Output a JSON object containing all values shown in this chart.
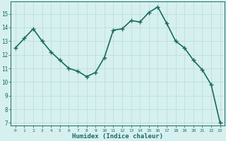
{
  "x": [
    0,
    1,
    2,
    3,
    4,
    5,
    6,
    7,
    8,
    9,
    10,
    11,
    12,
    13,
    14,
    15,
    16,
    17,
    18,
    19,
    20,
    21,
    22,
    23
  ],
  "y": [
    12.5,
    13.2,
    13.9,
    13.0,
    12.2,
    11.6,
    11.0,
    10.8,
    10.4,
    10.7,
    11.8,
    13.8,
    13.9,
    14.5,
    14.4,
    15.1,
    15.5,
    14.3,
    13.0,
    12.5,
    11.6,
    10.9,
    9.8,
    7.0
  ],
  "xlabel": "Humidex (Indice chaleur)",
  "ylim": [
    6.8,
    15.9
  ],
  "xlim": [
    -0.5,
    23.5
  ],
  "yticks": [
    7,
    8,
    9,
    10,
    11,
    12,
    13,
    14,
    15
  ],
  "xticks": [
    0,
    1,
    2,
    3,
    4,
    5,
    6,
    7,
    8,
    9,
    10,
    11,
    12,
    13,
    14,
    15,
    16,
    17,
    18,
    19,
    20,
    21,
    22,
    23
  ],
  "line_color": "#1a6b5e",
  "marker": "+",
  "bg_color": "#d6f0ef",
  "grid_color": "#b8dbd9",
  "tick_color": "#1a6b5e",
  "label_color": "#1a6b5e",
  "marker_size": 4,
  "line_width": 1.2
}
